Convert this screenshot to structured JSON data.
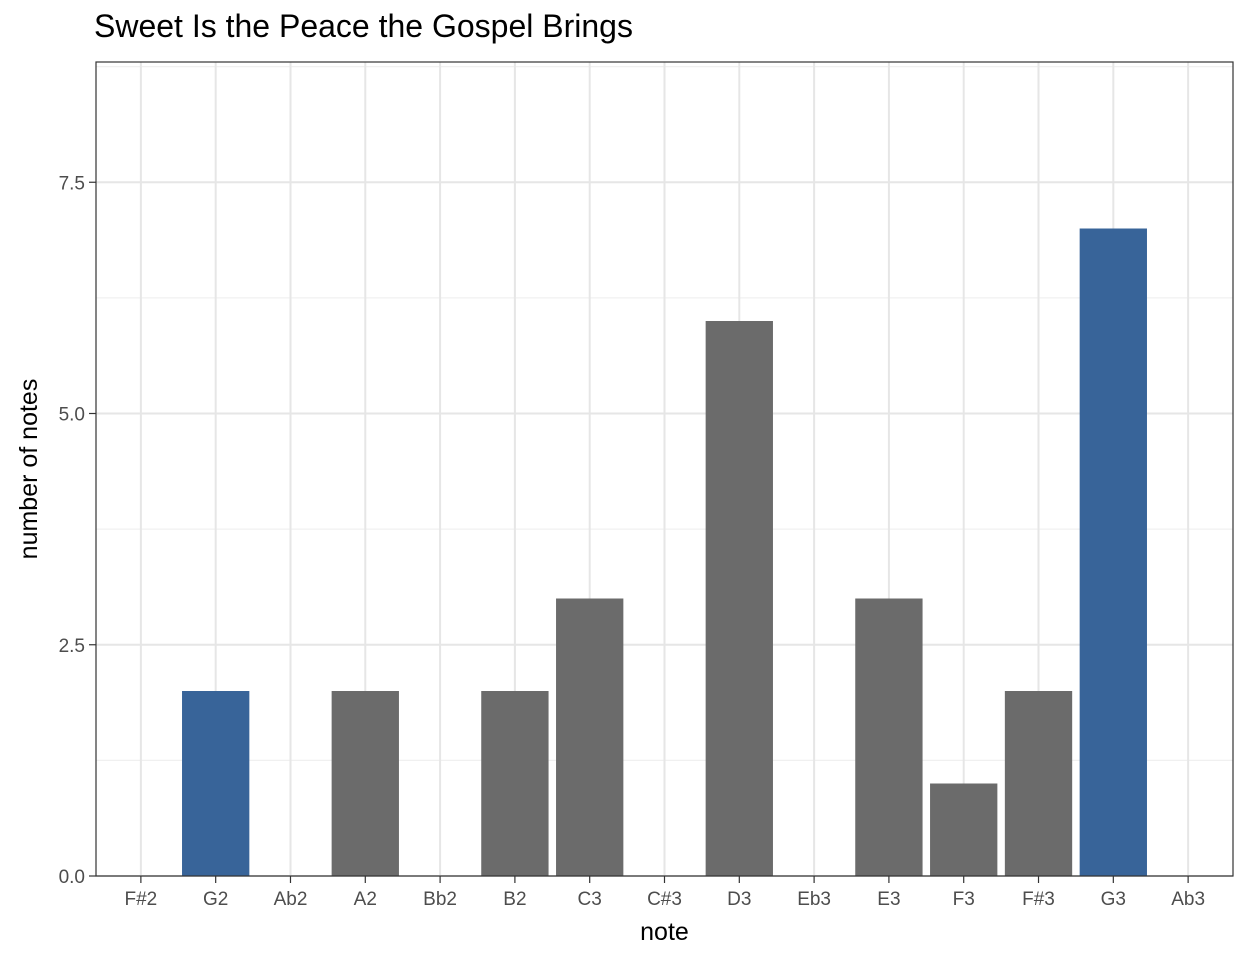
{
  "chart_data": {
    "type": "bar",
    "title": "Sweet Is the Peace the Gospel Brings",
    "xlabel": "note",
    "ylabel": "number of notes",
    "categories": [
      "F#2",
      "G2",
      "Ab2",
      "A2",
      "Bb2",
      "B2",
      "C3",
      "C#3",
      "D3",
      "Eb3",
      "E3",
      "F3",
      "F#3",
      "G3",
      "Ab3"
    ],
    "values": [
      0,
      2,
      0,
      2,
      0,
      2,
      3,
      0,
      6,
      0,
      3,
      1,
      2,
      7,
      0
    ],
    "highlighted": [
      "G2",
      "G3"
    ],
    "colors": {
      "default": "#6b6b6b",
      "highlight": "#386499"
    },
    "ylim": [
      0,
      8.8
    ],
    "yticks": [
      0,
      2.5,
      5,
      7.5
    ],
    "ytick_labels": [
      "0.0",
      "2.5",
      "5.0",
      "7.5"
    ],
    "grid": true,
    "legend": "none"
  }
}
